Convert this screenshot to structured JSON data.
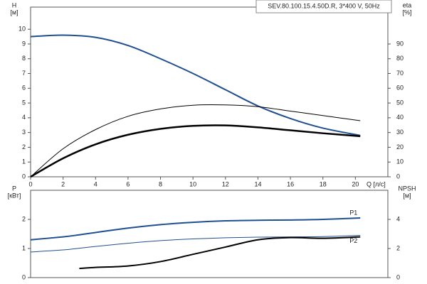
{
  "chart_data": [
    {
      "type": "line",
      "title": "SEV.80.100.15.4.50D.R, 3*400 V, 50Hz",
      "x_label": "Q [л/с]",
      "y_label": "H",
      "y_unit": "[м]",
      "y2_label": "eta",
      "y2_unit": "[%]",
      "x": [
        0,
        2,
        4,
        6,
        8,
        10,
        12,
        14,
        16,
        18,
        20.3
      ],
      "xlim": [
        0,
        22
      ],
      "xticks": [
        0,
        2,
        4,
        6,
        8,
        10,
        12,
        14,
        16,
        18,
        20
      ],
      "ylim": [
        0,
        11.5
      ],
      "yticks": [
        0,
        1,
        2,
        3,
        4,
        5,
        6,
        7,
        8,
        9,
        10
      ],
      "y2lim": [
        0,
        115
      ],
      "y2ticks": [
        0,
        10,
        20,
        30,
        40,
        50,
        60,
        70,
        80,
        90
      ],
      "series": [
        {
          "color": "#1f4f8f",
          "line_width": 2,
          "values": [
            9.5,
            9.6,
            9.45,
            8.9,
            8.0,
            7.0,
            5.9,
            4.8,
            3.95,
            3.3,
            2.8
          ]
        },
        {
          "color": "#000000",
          "line_width": 1,
          "axis": "y2",
          "values": [
            0,
            19,
            32,
            41,
            46,
            48.5,
            48.7,
            47.5,
            44.5,
            41.5,
            38
          ]
        },
        {
          "color": "#000000",
          "line_width": 2.5,
          "axis": "y2",
          "values": [
            0,
            12.5,
            22,
            28.5,
            32.5,
            34.5,
            34.8,
            33.5,
            31.5,
            29.5,
            27.5
          ]
        }
      ]
    },
    {
      "type": "line",
      "y_label": "P",
      "y_unit": "[кВт]",
      "y2_label": "NPSH",
      "y2_unit": "[м]",
      "x": [
        0,
        2,
        3,
        4,
        6,
        8,
        10,
        12,
        14,
        16,
        18,
        20.3
      ],
      "xlim": [
        0,
        22
      ],
      "ylim": [
        0,
        3
      ],
      "yticks": [
        0,
        1,
        2
      ],
      "y2lim": [
        0,
        6
      ],
      "y2ticks": [
        0,
        2,
        4
      ],
      "series": [
        {
          "name": "P1",
          "color": "#1f4f8f",
          "line_width": 2,
          "values": [
            1.3,
            1.4,
            1.47,
            1.55,
            1.7,
            1.82,
            1.9,
            1.95,
            1.97,
            1.98,
            2.0,
            2.05
          ]
        },
        {
          "name": "P2",
          "color": "#1f4f8f",
          "line_width": 1,
          "values": [
            0.88,
            0.95,
            1.01,
            1.07,
            1.18,
            1.27,
            1.33,
            1.37,
            1.39,
            1.4,
            1.41,
            1.45
          ]
        },
        {
          "color": "#000000",
          "line_width": 2,
          "axis": "y2",
          "values": [
            null,
            null,
            0.63,
            0.7,
            0.8,
            1.1,
            1.6,
            2.1,
            2.6,
            2.75,
            2.7,
            2.8
          ]
        }
      ]
    }
  ]
}
